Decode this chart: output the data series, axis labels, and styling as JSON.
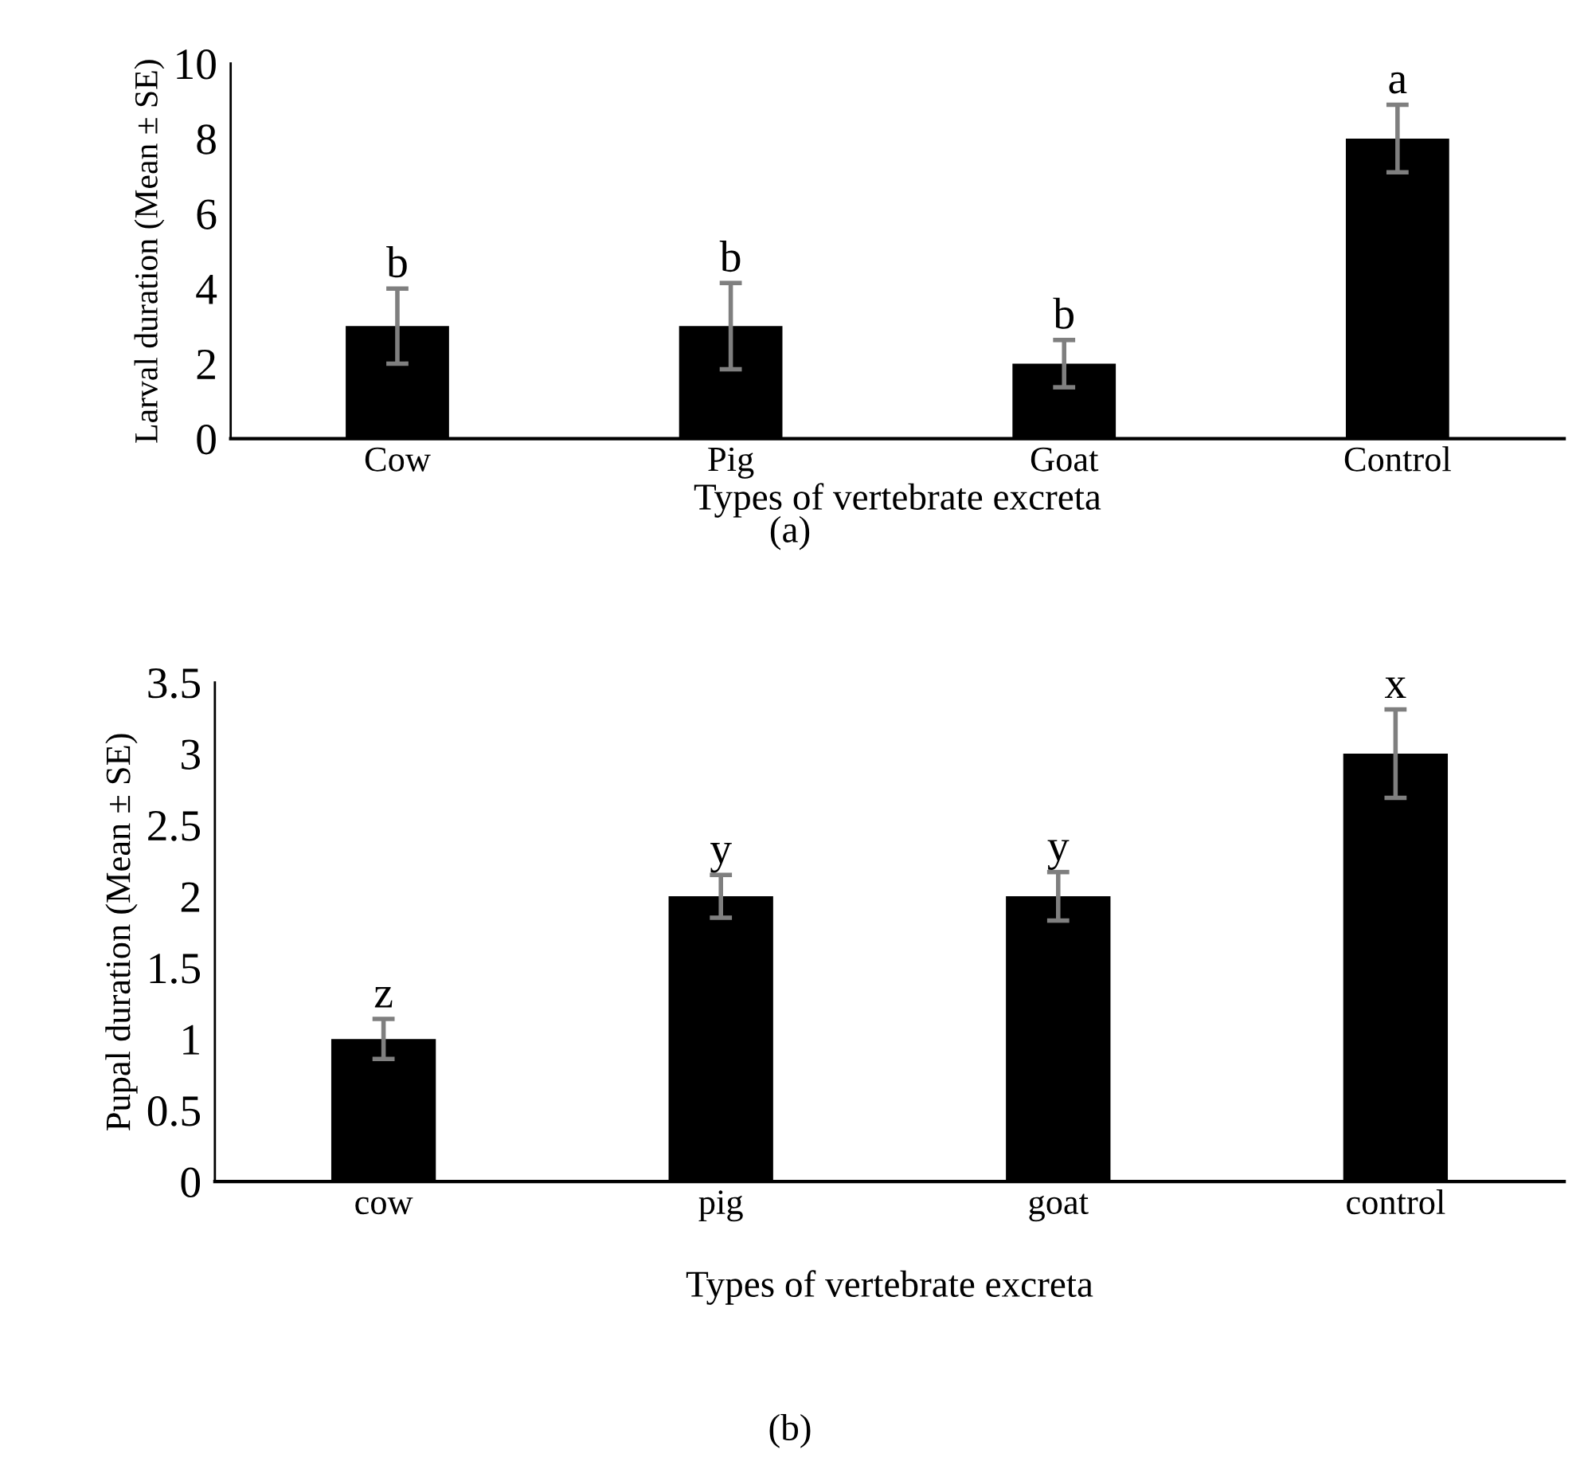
{
  "chart_data": [
    {
      "type": "bar",
      "xlabel": "Types of vertebrate excreta",
      "ylabel": "Larval duration (Mean ± SE)",
      "categories": [
        "Cow",
        "Pig",
        "Goat",
        "Control"
      ],
      "series": [
        {
          "color": "#000000",
          "values": [
            3,
            3,
            2,
            8
          ],
          "errors": [
            1.0,
            1.15,
            0.63,
            0.9
          ]
        }
      ],
      "ylim": [
        0,
        10
      ],
      "yticks": [
        0,
        2,
        4,
        6,
        8,
        10
      ],
      "grid": false,
      "legend": false,
      "annotations": [
        "b",
        "b",
        "b",
        "a",
        "(a)"
      ]
    },
    {
      "type": "bar",
      "xlabel": "Types of vertebrate excreta",
      "ylabel": "Pupal duration (Mean ± SE)",
      "categories": [
        "cow",
        "pig",
        "goat",
        "control"
      ],
      "series": [
        {
          "color": "#000000",
          "values": [
            1,
            2,
            2,
            3
          ],
          "errors": [
            0.14,
            0.15,
            0.17,
            0.31
          ]
        }
      ],
      "ylim": [
        0,
        3.5
      ],
      "yticks": [
        0,
        0.5,
        1,
        1.5,
        2,
        2.5,
        3,
        3.5
      ],
      "grid": false,
      "legend": false,
      "annotations": [
        "z",
        "y",
        "y",
        "x",
        "(b)"
      ]
    }
  ]
}
